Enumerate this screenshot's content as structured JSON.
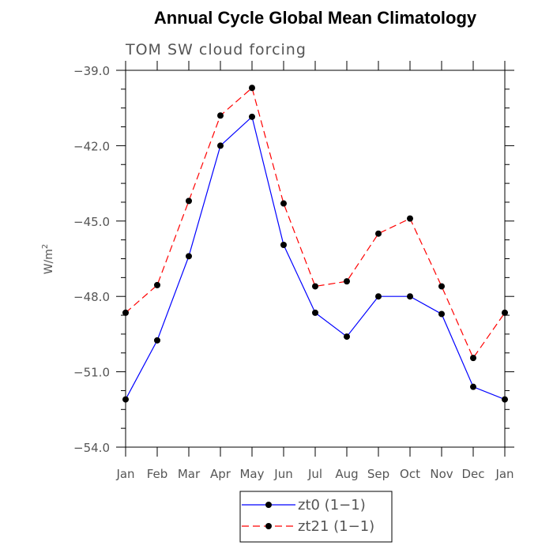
{
  "chart_data": {
    "type": "line",
    "title": "Annual Cycle Global Mean Climatology",
    "subtitle": "TOM SW cloud forcing",
    "ylabel": "W/m",
    "ylabel_superscript": "2",
    "xlabel": "",
    "categories": [
      "Jan",
      "Feb",
      "Mar",
      "Apr",
      "May",
      "Jun",
      "Jul",
      "Aug",
      "Sep",
      "Oct",
      "Nov",
      "Dec",
      "Jan"
    ],
    "ylim": [
      -54.0,
      -39.0
    ],
    "yticks": [
      -54.0,
      -51.0,
      -48.0,
      -45.0,
      -42.0,
      -39.0
    ],
    "ytick_labels": [
      "−54.0",
      "−51.0",
      "−48.0",
      "−45.0",
      "−42.0",
      "−39.0"
    ],
    "grid": false,
    "legend_position": "bottom",
    "series": [
      {
        "name": "zt0 (1−1)",
        "color": "#0000ff",
        "dash": "solid",
        "values": [
          -52.1,
          -49.75,
          -46.4,
          -42.0,
          -40.85,
          -45.95,
          -48.65,
          -49.6,
          -48.0,
          -48.0,
          -48.7,
          -51.6,
          -52.1
        ]
      },
      {
        "name": "zt21 (1−1)",
        "color": "#ff0000",
        "dash": "dashed",
        "values": [
          -48.65,
          -47.55,
          -44.2,
          -40.8,
          -39.7,
          -44.3,
          -47.6,
          -47.4,
          -45.5,
          -44.9,
          -47.6,
          -50.45,
          -48.65
        ]
      }
    ]
  }
}
